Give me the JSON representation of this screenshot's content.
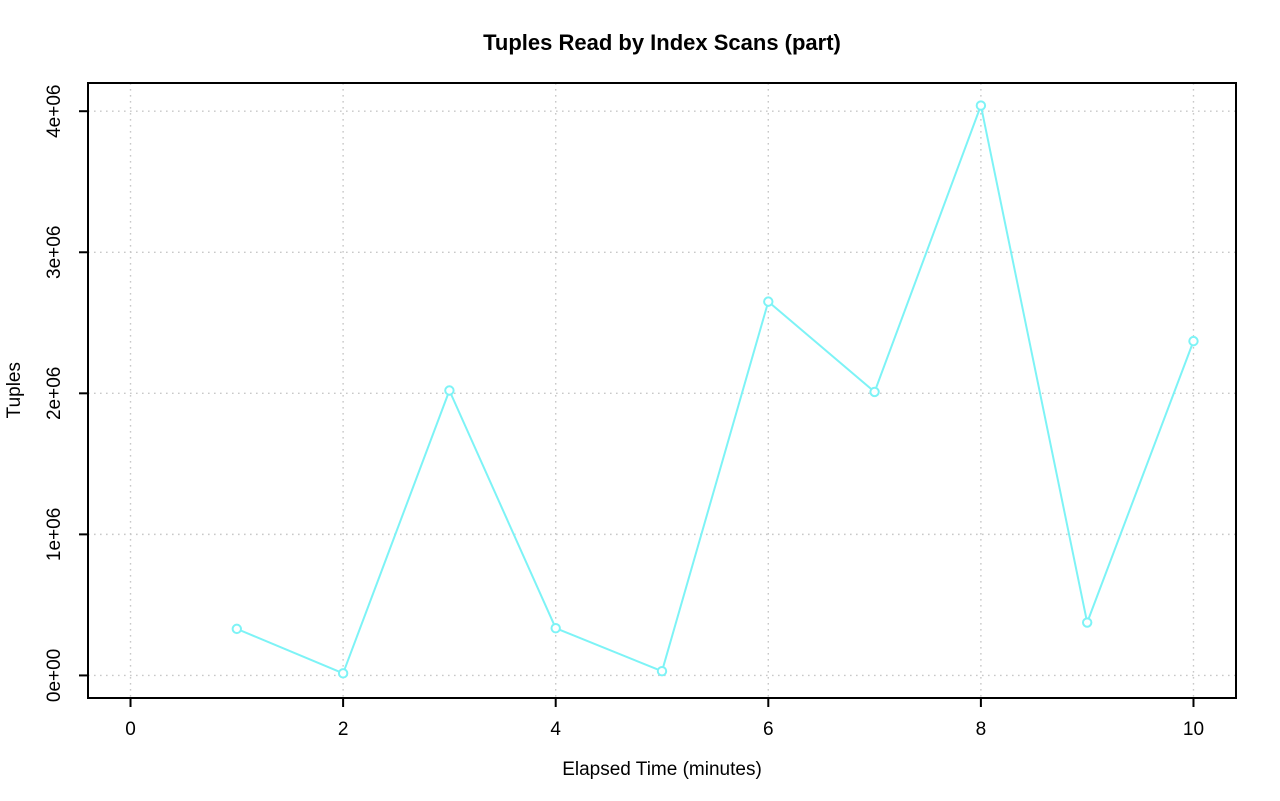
{
  "chart_data": {
    "type": "line",
    "title": "Tuples Read by Index Scans (part)",
    "xlabel": "Elapsed Time (minutes)",
    "ylabel": "Tuples",
    "x": [
      1,
      2,
      3,
      4,
      5,
      6,
      7,
      8,
      9,
      10
    ],
    "y": [
      330000,
      15000,
      2020000,
      335000,
      30000,
      2650000,
      2010000,
      4040000,
      375000,
      2370000
    ],
    "x_ticks": [
      0,
      2,
      4,
      6,
      8,
      10
    ],
    "x_tick_labels": [
      "0",
      "2",
      "4",
      "6",
      "8",
      "10"
    ],
    "y_ticks": [
      0,
      1000000,
      2000000,
      3000000,
      4000000
    ],
    "y_tick_labels": [
      "0e+00",
      "1e+06",
      "2e+06",
      "3e+06",
      "4e+06"
    ],
    "xlim": [
      -0.4,
      10.4
    ],
    "ylim": [
      -160000,
      4200000
    ],
    "grid": true,
    "grid_style": "dotted",
    "legend_position": "none",
    "marker": "open-circle",
    "colors": {
      "line": "#7DF3F6",
      "marker": "#7DF3F6",
      "marker_fill": "#FFFFFF",
      "grid": "#C8C8C8",
      "axis": "#000000",
      "text": "#000000",
      "background": "#FFFFFF"
    }
  }
}
